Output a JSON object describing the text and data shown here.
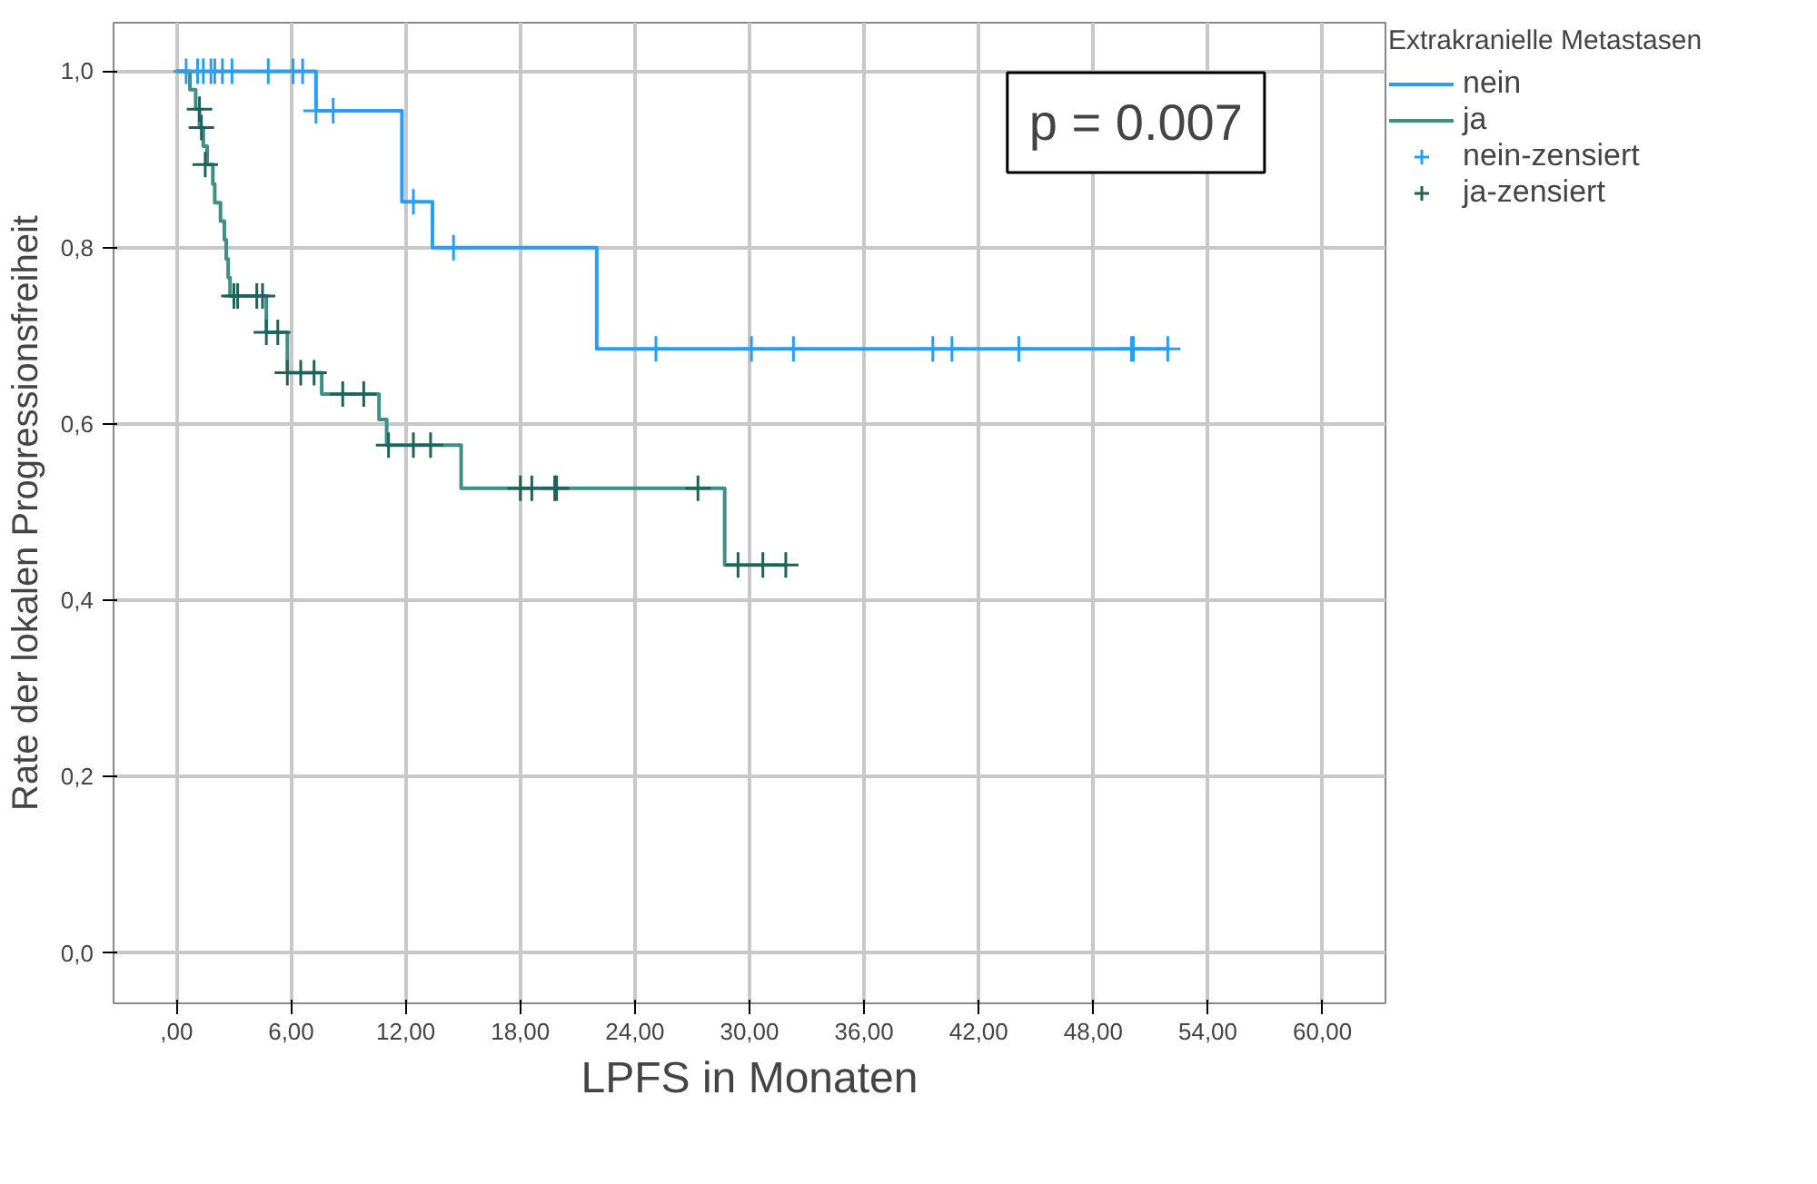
{
  "chart_data": {
    "type": "step",
    "xlabel": "LPFS in Monaten",
    "ylabel": "Rate der lokalen Progressionsfreiheit",
    "legend_title": "Extrakranielle Metastasen",
    "series": [
      {
        "name": "nein",
        "marker": "none",
        "color": "#2a9df4",
        "x": [
          0,
          7.3,
          11.8,
          13.4,
          22.0,
          52.0
        ],
        "values": [
          1.0,
          0.955,
          0.852,
          0.8,
          0.685,
          0.685
        ]
      },
      {
        "name": "ja",
        "marker": "none",
        "color": "#3f8f86",
        "x": [
          0,
          0.7,
          1.0,
          1.2,
          1.4,
          1.6,
          1.9,
          2.0,
          2.3,
          2.5,
          2.6,
          2.7,
          2.8,
          4.7,
          5.8,
          7.6,
          10.6,
          11.0,
          14.9,
          28.7,
          31.9
        ],
        "values": [
          1.0,
          0.979,
          0.957,
          0.936,
          0.915,
          0.894,
          0.872,
          0.851,
          0.83,
          0.809,
          0.787,
          0.766,
          0.745,
          0.704,
          0.658,
          0.634,
          0.605,
          0.576,
          0.527,
          0.44,
          0.44
        ]
      },
      {
        "name": "nein-zensiert",
        "type": "scatter",
        "marker": "cross",
        "color": "#2a9df4",
        "x": [
          0.5,
          1.1,
          1.4,
          1.8,
          2.0,
          2.4,
          2.9,
          4.8,
          6.1,
          6.6,
          7.3,
          8.2,
          12.4,
          14.5,
          25.1,
          30.1,
          32.3,
          39.6,
          40.6,
          44.1,
          50.0,
          50.1,
          51.9
        ],
        "values": [
          1.0,
          1.0,
          1.0,
          1.0,
          1.0,
          1.0,
          1.0,
          1.0,
          1.0,
          1.0,
          0.955,
          0.955,
          0.852,
          0.8,
          0.685,
          0.685,
          0.685,
          0.685,
          0.685,
          0.685,
          0.685,
          0.685,
          0.685
        ]
      },
      {
        "name": "ja-zensiert",
        "type": "scatter",
        "marker": "cross",
        "color": "#1f625b",
        "x": [
          1.2,
          1.3,
          1.5,
          3.0,
          3.2,
          4.2,
          4.5,
          4.7,
          5.3,
          5.8,
          6.5,
          7.2,
          8.7,
          9.8,
          11.1,
          12.4,
          13.3,
          18.0,
          18.6,
          19.8,
          19.9,
          27.3,
          29.4,
          30.7,
          31.9
        ],
        "values": [
          0.957,
          0.936,
          0.894,
          0.745,
          0.745,
          0.745,
          0.745,
          0.704,
          0.704,
          0.658,
          0.658,
          0.658,
          0.634,
          0.634,
          0.576,
          0.576,
          0.576,
          0.527,
          0.527,
          0.527,
          0.527,
          0.527,
          0.44,
          0.44,
          0.44
        ]
      }
    ],
    "xlim": [
      -3.3,
      63.3
    ],
    "ylim": [
      -0.057,
      1.055
    ],
    "xticks": [
      {
        "value": 0,
        "label": ",00"
      },
      {
        "value": 6,
        "label": "6,00"
      },
      {
        "value": 12,
        "label": "12,00"
      },
      {
        "value": 18,
        "label": "18,00"
      },
      {
        "value": 24,
        "label": "24,00"
      },
      {
        "value": 30,
        "label": "30,00"
      },
      {
        "value": 36,
        "label": "36,00"
      },
      {
        "value": 42,
        "label": "42,00"
      },
      {
        "value": 48,
        "label": "48,00"
      },
      {
        "value": 54,
        "label": "54,00"
      },
      {
        "value": 60,
        "label": "60,00"
      }
    ],
    "yticks": [
      {
        "value": 0,
        "label": "0,0"
      },
      {
        "value": 0.2,
        "label": "0,2"
      },
      {
        "value": 0.4,
        "label": "0,4"
      },
      {
        "value": 0.6,
        "label": "0,6"
      },
      {
        "value": 0.8,
        "label": "0,8"
      },
      {
        "value": 1.0,
        "label": "1,0"
      }
    ],
    "grid": true,
    "legend": "right",
    "annotations": [
      "p = 0.007"
    ]
  }
}
